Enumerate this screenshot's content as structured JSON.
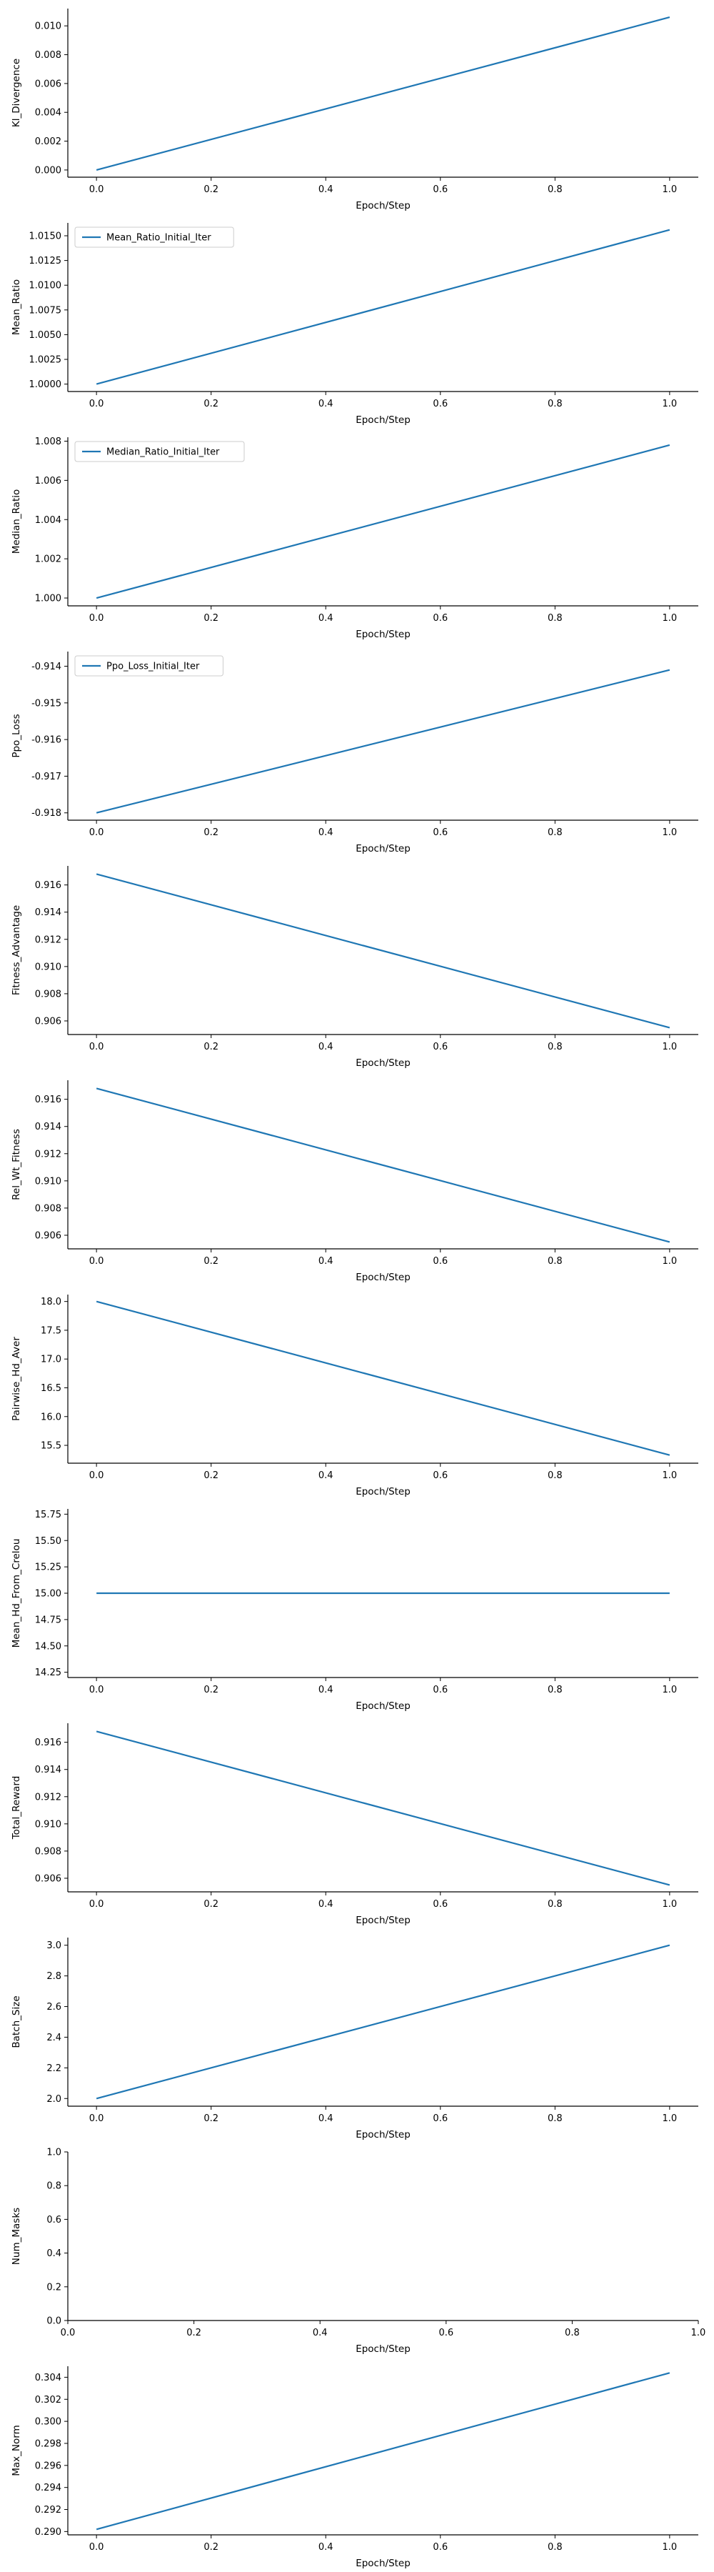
{
  "chart_data": [
    {
      "type": "line",
      "xlabel": "Epoch/Step",
      "ylabel": "Kl_Divergence",
      "xlim": [
        -0.05,
        1.05
      ],
      "ylim": [
        -0.0005,
        0.0112
      ],
      "xticks": [
        "0.0",
        "0.2",
        "0.4",
        "0.6",
        "0.8",
        "1.0"
      ],
      "yticks": [
        "0.000",
        "0.002",
        "0.004",
        "0.006",
        "0.008",
        "0.010"
      ],
      "legend": "",
      "series": [
        {
          "x": [
            0,
            1
          ],
          "y": [
            0.0,
            0.0106
          ]
        }
      ]
    },
    {
      "type": "line",
      "xlabel": "Epoch/Step",
      "ylabel": "Mean_Ratio",
      "xlim": [
        -0.05,
        1.05
      ],
      "ylim": [
        0.99925,
        1.0163
      ],
      "xticks": [
        "0.0",
        "0.2",
        "0.4",
        "0.6",
        "0.8",
        "1.0"
      ],
      "yticks": [
        "1.0000",
        "1.0025",
        "1.0050",
        "1.0075",
        "1.0100",
        "1.0125",
        "1.0150"
      ],
      "legend": "top-left",
      "series": [
        {
          "name": "Mean_Ratio_Initial_Iter",
          "x": [
            0,
            1
          ],
          "y": [
            1.0,
            1.0156
          ]
        }
      ]
    },
    {
      "type": "line",
      "xlabel": "Epoch/Step",
      "ylabel": "Median_Ratio",
      "xlim": [
        -0.05,
        1.05
      ],
      "ylim": [
        0.9996,
        1.0082
      ],
      "xticks": [
        "0.0",
        "0.2",
        "0.4",
        "0.6",
        "0.8",
        "1.0"
      ],
      "yticks": [
        "1.000",
        "1.002",
        "1.004",
        "1.006",
        "1.008"
      ],
      "legend": "top-left",
      "series": [
        {
          "name": "Median_Ratio_Initial_Iter",
          "x": [
            0,
            1
          ],
          "y": [
            1.0,
            1.0078
          ]
        }
      ]
    },
    {
      "type": "line",
      "xlabel": "Epoch/Step",
      "ylabel": "Ppo_Loss",
      "xlim": [
        -0.05,
        1.05
      ],
      "ylim": [
        -0.9182,
        -0.9136
      ],
      "xticks": [
        "0.0",
        "0.2",
        "0.4",
        "0.6",
        "0.8",
        "1.0"
      ],
      "yticks": [
        "-0.918",
        "-0.917",
        "-0.916",
        "-0.915",
        "-0.914"
      ],
      "legend": "top-left",
      "series": [
        {
          "name": "Ppo_Loss_Initial_Iter",
          "x": [
            0,
            1
          ],
          "y": [
            -0.918,
            -0.9141
          ]
        }
      ]
    },
    {
      "type": "line",
      "xlabel": "Epoch/Step",
      "ylabel": "Fitness_Advantage",
      "xlim": [
        -0.05,
        1.05
      ],
      "ylim": [
        0.905,
        0.9174
      ],
      "xticks": [
        "0.0",
        "0.2",
        "0.4",
        "0.6",
        "0.8",
        "1.0"
      ],
      "yticks": [
        "0.906",
        "0.908",
        "0.910",
        "0.912",
        "0.914",
        "0.916"
      ],
      "legend": "",
      "series": [
        {
          "x": [
            0,
            1
          ],
          "y": [
            0.9168,
            0.9055
          ]
        }
      ]
    },
    {
      "type": "line",
      "xlabel": "Epoch/Step",
      "ylabel": "Rel_Wt_Fitness",
      "xlim": [
        -0.05,
        1.05
      ],
      "ylim": [
        0.905,
        0.9174
      ],
      "xticks": [
        "0.0",
        "0.2",
        "0.4",
        "0.6",
        "0.8",
        "1.0"
      ],
      "yticks": [
        "0.906",
        "0.908",
        "0.910",
        "0.912",
        "0.914",
        "0.916"
      ],
      "legend": "",
      "series": [
        {
          "x": [
            0,
            1
          ],
          "y": [
            0.9168,
            0.9055
          ]
        }
      ]
    },
    {
      "type": "line",
      "xlabel": "Epoch/Step",
      "ylabel": "Pairwise_Hd_Aver",
      "xlim": [
        -0.05,
        1.05
      ],
      "ylim": [
        15.19,
        18.12
      ],
      "xticks": [
        "0.0",
        "0.2",
        "0.4",
        "0.6",
        "0.8",
        "1.0"
      ],
      "yticks": [
        "15.5",
        "16.0",
        "16.5",
        "17.0",
        "17.5",
        "18.0"
      ],
      "legend": "",
      "series": [
        {
          "x": [
            0,
            1
          ],
          "y": [
            18.0,
            15.33
          ]
        }
      ]
    },
    {
      "type": "line",
      "xlabel": "Epoch/Step",
      "ylabel": "Mean_Hd_From_Crelou",
      "xlim": [
        -0.05,
        1.05
      ],
      "ylim": [
        14.2,
        15.8
      ],
      "xticks": [
        "0.0",
        "0.2",
        "0.4",
        "0.6",
        "0.8",
        "1.0"
      ],
      "yticks": [
        "14.25",
        "14.50",
        "14.75",
        "15.00",
        "15.25",
        "15.50",
        "15.75"
      ],
      "legend": "",
      "series": [
        {
          "x": [
            0,
            1
          ],
          "y": [
            15.0,
            15.0
          ]
        }
      ]
    },
    {
      "type": "line",
      "xlabel": "Epoch/Step",
      "ylabel": "Total_Reward",
      "xlim": [
        -0.05,
        1.05
      ],
      "ylim": [
        0.905,
        0.9174
      ],
      "xticks": [
        "0.0",
        "0.2",
        "0.4",
        "0.6",
        "0.8",
        "1.0"
      ],
      "yticks": [
        "0.906",
        "0.908",
        "0.910",
        "0.912",
        "0.914",
        "0.916"
      ],
      "legend": "",
      "series": [
        {
          "x": [
            0,
            1
          ],
          "y": [
            0.9168,
            0.9055
          ]
        }
      ]
    },
    {
      "type": "line",
      "xlabel": "Epoch/Step",
      "ylabel": "Batch_Size",
      "xlim": [
        -0.05,
        1.05
      ],
      "ylim": [
        1.95,
        3.05
      ],
      "xticks": [
        "0.0",
        "0.2",
        "0.4",
        "0.6",
        "0.8",
        "1.0"
      ],
      "yticks": [
        "2.0",
        "2.2",
        "2.4",
        "2.6",
        "2.8",
        "3.0"
      ],
      "legend": "",
      "series": [
        {
          "x": [
            0,
            1
          ],
          "y": [
            2.0,
            3.0
          ]
        }
      ]
    },
    {
      "type": "line",
      "xlabel": "Epoch/Step",
      "ylabel": "Num_Masks",
      "xlim": [
        0.0,
        1.0
      ],
      "ylim": [
        0.0,
        1.0
      ],
      "xticks": [
        "0.0",
        "0.2",
        "0.4",
        "0.6",
        "0.8",
        "1.0"
      ],
      "yticks": [
        "0.0",
        "0.2",
        "0.4",
        "0.6",
        "0.8",
        "1.0"
      ],
      "legend": "",
      "series": []
    },
    {
      "type": "line",
      "xlabel": "Epoch/Step",
      "ylabel": "Max_Norm",
      "xlim": [
        -0.05,
        1.05
      ],
      "ylim": [
        0.2897,
        0.305
      ],
      "xticks": [
        "0.0",
        "0.2",
        "0.4",
        "0.6",
        "0.8",
        "1.0"
      ],
      "yticks": [
        "0.290",
        "0.292",
        "0.294",
        "0.296",
        "0.298",
        "0.300",
        "0.302",
        "0.304"
      ],
      "legend": "",
      "series": [
        {
          "x": [
            0,
            1
          ],
          "y": [
            0.2902,
            0.3044
          ]
        }
      ]
    }
  ],
  "colors": {
    "line": "#1f77b4",
    "axis": "#000000",
    "legend_border": "#cccccc"
  }
}
